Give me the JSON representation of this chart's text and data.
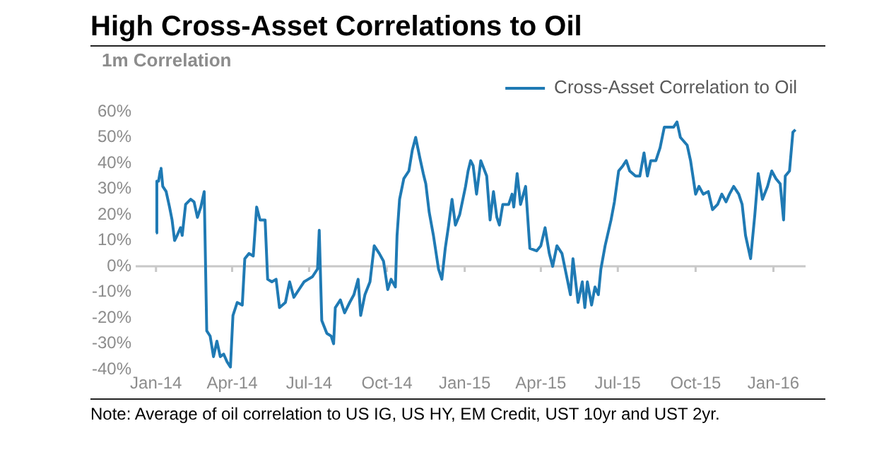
{
  "chart_data": {
    "type": "line",
    "title": "High Cross-Asset Correlations to Oil",
    "ylabel": "1m Correlation",
    "annotations": [
      "Note: Average of oil correlation to US IG, US HY, EM Credit, UST 10yr and UST 2yr."
    ],
    "x": [
      "2014-01-01",
      "2014-01-02",
      "2014-01-04",
      "2014-01-06",
      "2014-01-07",
      "2014-01-09",
      "2014-01-13",
      "2014-01-17",
      "2014-01-20",
      "2014-01-23",
      "2014-01-26",
      "2014-01-30",
      "2014-02-01",
      "2014-02-05",
      "2014-02-11",
      "2014-02-15",
      "2014-02-19",
      "2014-02-23",
      "2014-02-27",
      "2014-03-02",
      "2014-03-06",
      "2014-03-10",
      "2014-03-14",
      "2014-03-18",
      "2014-03-22",
      "2014-03-26",
      "2014-03-30",
      "2014-04-02",
      "2014-04-07",
      "2014-04-13",
      "2014-04-16",
      "2014-04-21",
      "2014-04-26",
      "2014-04-30",
      "2014-05-04",
      "2014-05-10",
      "2014-05-13",
      "2014-05-18",
      "2014-05-23",
      "2014-05-27",
      "2014-06-03",
      "2014-06-08",
      "2014-06-13",
      "2014-06-19",
      "2014-06-25",
      "2014-06-30",
      "2014-07-05",
      "2014-07-11",
      "2014-07-13",
      "2014-07-16",
      "2014-07-22",
      "2014-07-27",
      "2014-07-30",
      "2014-08-01",
      "2014-08-07",
      "2014-08-12",
      "2014-08-18",
      "2014-08-23",
      "2014-08-28",
      "2014-08-31",
      "2014-09-05",
      "2014-09-11",
      "2014-09-16",
      "2014-09-22",
      "2014-09-27",
      "2014-10-02",
      "2014-10-06",
      "2014-10-11",
      "2014-10-13",
      "2014-10-16",
      "2014-10-21",
      "2014-10-27",
      "2014-10-31",
      "2014-11-04",
      "2014-11-09",
      "2014-11-13",
      "2014-11-16",
      "2014-11-20",
      "2014-11-25",
      "2014-12-01",
      "2014-12-05",
      "2014-12-09",
      "2014-12-13",
      "2014-12-17",
      "2014-12-21",
      "2014-12-26",
      "2015-01-02",
      "2015-01-05",
      "2015-01-08",
      "2015-01-11",
      "2015-01-15",
      "2015-01-20",
      "2015-01-27",
      "2015-01-31",
      "2015-02-04",
      "2015-02-08",
      "2015-02-11",
      "2015-02-15",
      "2015-02-22",
      "2015-02-26",
      "2015-02-28",
      "2015-03-04",
      "2015-03-08",
      "2015-03-14",
      "2015-03-19",
      "2015-03-27",
      "2015-04-01",
      "2015-04-06",
      "2015-04-11",
      "2015-04-15",
      "2015-04-20",
      "2015-04-26",
      "2015-05-01",
      "2015-05-06",
      "2015-05-09",
      "2015-05-15",
      "2015-05-20",
      "2015-05-23",
      "2015-05-26",
      "2015-05-31",
      "2015-06-04",
      "2015-06-08",
      "2015-06-11",
      "2015-06-16",
      "2015-06-23",
      "2015-06-27",
      "2015-07-02",
      "2015-07-07",
      "2015-07-11",
      "2015-07-15",
      "2015-07-22",
      "2015-07-27",
      "2015-08-01",
      "2015-08-05",
      "2015-08-09",
      "2015-08-15",
      "2015-08-20",
      "2015-08-25",
      "2015-08-31",
      "2015-09-05",
      "2015-09-09",
      "2015-09-13",
      "2015-09-21",
      "2015-09-25",
      "2015-10-01",
      "2015-10-05",
      "2015-10-10",
      "2015-10-16",
      "2015-10-21",
      "2015-10-27",
      "2015-11-01",
      "2015-11-06",
      "2015-11-10",
      "2015-11-15",
      "2015-11-21",
      "2015-11-25",
      "2015-11-29",
      "2015-12-05",
      "2015-12-10",
      "2015-12-14",
      "2015-12-19",
      "2015-12-25",
      "2015-12-30",
      "2016-01-04",
      "2016-01-09",
      "2016-01-13",
      "2016-01-15",
      "2016-01-20",
      "2016-01-24",
      "2016-01-27"
    ],
    "series": [
      {
        "name": "Cross-Asset Correlation to Oil",
        "color": "#1f7ab4",
        "values": [
          13,
          33,
          33,
          37,
          38,
          31,
          29,
          23,
          18,
          10,
          12,
          15,
          12,
          24,
          26,
          25,
          19,
          23,
          29,
          -25,
          -27,
          -35,
          -29,
          -35,
          -34,
          -37,
          -39,
          -19,
          -14,
          -15,
          3,
          5,
          4,
          23,
          18,
          18,
          -5,
          -6,
          -5,
          -16,
          -14,
          -6,
          -12,
          -9,
          -6,
          -5,
          -4,
          -1,
          14,
          -21,
          -26,
          -27,
          -30,
          -16,
          -13,
          -18,
          -14,
          -11,
          -5,
          -19,
          -11,
          -6,
          8,
          5,
          2,
          -9,
          -5,
          -8,
          12,
          26,
          34,
          37,
          45,
          50,
          42,
          36,
          32,
          21,
          12,
          -1,
          -5,
          7,
          16,
          26,
          16,
          20,
          31,
          37,
          41,
          39,
          28,
          41,
          35,
          18,
          29,
          19,
          16,
          24,
          24,
          28,
          23,
          36,
          24,
          31,
          7,
          6,
          8,
          15,
          5,
          0,
          8,
          5,
          -3,
          -11,
          3,
          -14,
          -6,
          -16,
          -6,
          -15,
          -8,
          -11,
          -1,
          8,
          18,
          25,
          37,
          39,
          41,
          37,
          35,
          35,
          44,
          35,
          41,
          41,
          46,
          54,
          54,
          54,
          56,
          50,
          47,
          41,
          28,
          31,
          28,
          29,
          22,
          24,
          28,
          25,
          28,
          31,
          28,
          24,
          12,
          3,
          20,
          36,
          26,
          31,
          37,
          34,
          32,
          18,
          35,
          37,
          52,
          53
        ]
      }
    ],
    "xlim": [
      "2013-12-08",
      "2016-02-08"
    ],
    "xticks": [
      {
        "value": "2014-01-01",
        "label": "Jan-14"
      },
      {
        "value": "2014-04-01",
        "label": "Apr-14"
      },
      {
        "value": "2014-07-01",
        "label": "Jul-14"
      },
      {
        "value": "2014-10-01",
        "label": "Oct-14"
      },
      {
        "value": "2015-01-01",
        "label": "Jan-15"
      },
      {
        "value": "2015-04-01",
        "label": "Apr-15"
      },
      {
        "value": "2015-07-01",
        "label": "Jul-15"
      },
      {
        "value": "2015-10-01",
        "label": "Oct-15"
      },
      {
        "value": "2016-01-01",
        "label": "Jan-16"
      }
    ],
    "ylim": [
      -40,
      60
    ],
    "yticks": [
      {
        "value": -40,
        "label": "-40%"
      },
      {
        "value": -30,
        "label": "-30%"
      },
      {
        "value": -20,
        "label": "-20%"
      },
      {
        "value": -10,
        "label": "-10%"
      },
      {
        "value": 0,
        "label": "0%"
      },
      {
        "value": 10,
        "label": "10%"
      },
      {
        "value": 20,
        "label": "20%"
      },
      {
        "value": 30,
        "label": "30%"
      },
      {
        "value": 40,
        "label": "40%"
      },
      {
        "value": 50,
        "label": "50%"
      },
      {
        "value": 60,
        "label": "60%"
      }
    ],
    "ref_lines": [
      {
        "axis": "y",
        "value": 0,
        "color": "#c8c8c8"
      }
    ],
    "grid": false,
    "legend": "top",
    "marker": "none",
    "line_style": "solid"
  }
}
